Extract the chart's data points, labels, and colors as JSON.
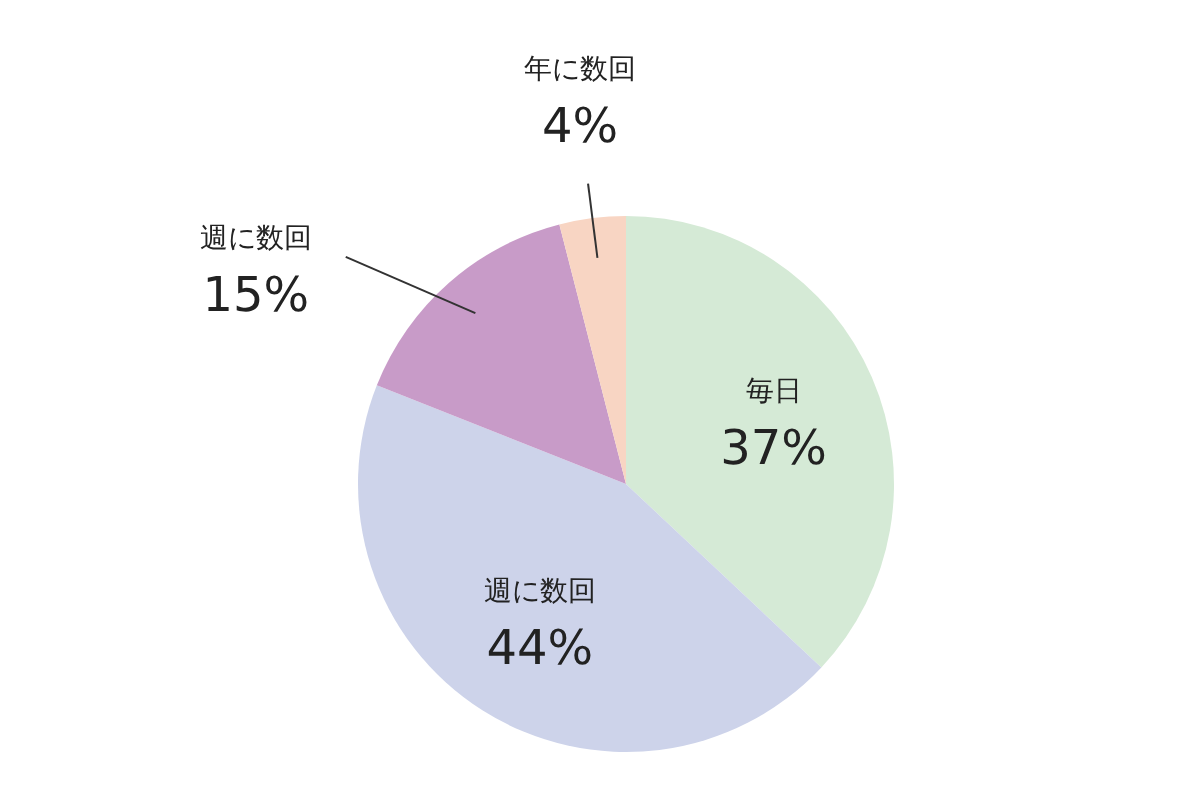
{
  "chart_data": {
    "type": "pie",
    "categories": [
      "毎日",
      "週に数回",
      "週に数回",
      "年に数回"
    ],
    "values": [
      37,
      44,
      15,
      4
    ],
    "colors": [
      "#d5ead6",
      "#cdd3ea",
      "#c89bc8",
      "#f8d5c3"
    ],
    "value_labels": [
      "37%",
      "44%",
      "15%",
      "4%"
    ]
  }
}
